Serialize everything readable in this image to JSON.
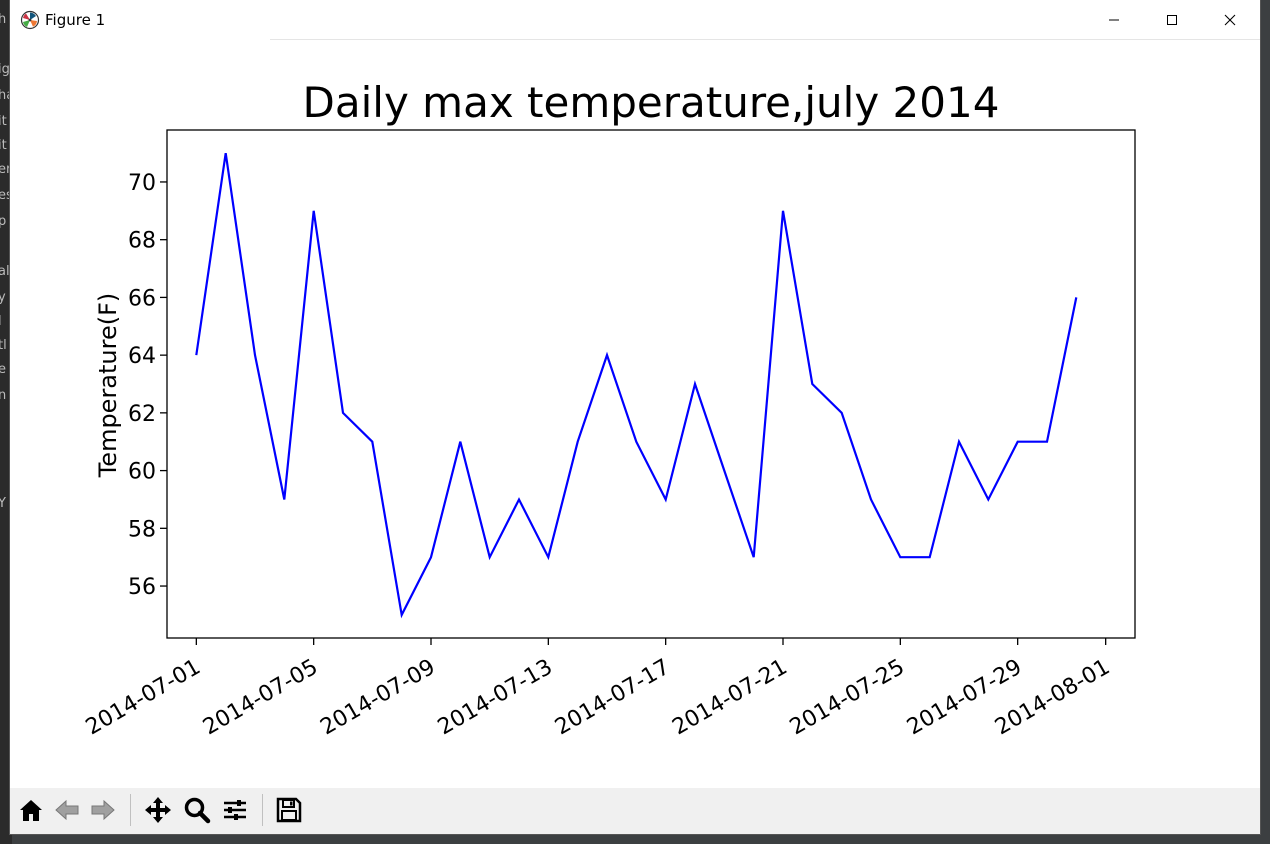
{
  "window": {
    "title": "Figure 1",
    "icon": "matplotlib-logo-icon",
    "controls": [
      "minimize-icon",
      "maximize-icon",
      "close-icon"
    ]
  },
  "background_fragments": [
    "h",
    "ig",
    "ha",
    "it",
    "it",
    "er",
    "es",
    "p",
    "al",
    "y",
    "l",
    "tl",
    "e",
    "n",
    "Y"
  ],
  "toolbar": {
    "buttons": [
      {
        "name": "home-icon"
      },
      {
        "name": "back-arrow-icon"
      },
      {
        "name": "forward-arrow-icon"
      },
      {
        "name": "pan-move-icon"
      },
      {
        "name": "zoom-magnifier-icon"
      },
      {
        "name": "configure-subplots-icon"
      },
      {
        "name": "save-floppy-icon"
      }
    ]
  },
  "chart_data": {
    "type": "line",
    "title": "Daily max temperature,july 2014",
    "xlabel": "",
    "ylabel": "Temperature(F)",
    "line_color": "#0000ff",
    "grid": false,
    "ylim": [
      54.2,
      71.8
    ],
    "xlim": [
      "2014-06-30",
      "2014-08-02"
    ],
    "x_ticks": [
      "2014-07-01",
      "2014-07-05",
      "2014-07-09",
      "2014-07-13",
      "2014-07-17",
      "2014-07-21",
      "2014-07-25",
      "2014-07-29",
      "2014-08-01"
    ],
    "y_ticks": [
      56,
      58,
      60,
      62,
      64,
      66,
      68,
      70
    ],
    "x": [
      "2014-07-01",
      "2014-07-02",
      "2014-07-03",
      "2014-07-04",
      "2014-07-05",
      "2014-07-06",
      "2014-07-07",
      "2014-07-08",
      "2014-07-09",
      "2014-07-10",
      "2014-07-11",
      "2014-07-12",
      "2014-07-13",
      "2014-07-14",
      "2014-07-15",
      "2014-07-16",
      "2014-07-17",
      "2014-07-18",
      "2014-07-19",
      "2014-07-20",
      "2014-07-21",
      "2014-07-22",
      "2014-07-23",
      "2014-07-24",
      "2014-07-25",
      "2014-07-26",
      "2014-07-27",
      "2014-07-28",
      "2014-07-29",
      "2014-07-30",
      "2014-07-31"
    ],
    "values": [
      64,
      71,
      64,
      59,
      69,
      62,
      61,
      55,
      57,
      61,
      57,
      59,
      57,
      61,
      64,
      61,
      59,
      63,
      60,
      57,
      69,
      63,
      62,
      59,
      57,
      57,
      61,
      59,
      61,
      61,
      66
    ]
  }
}
